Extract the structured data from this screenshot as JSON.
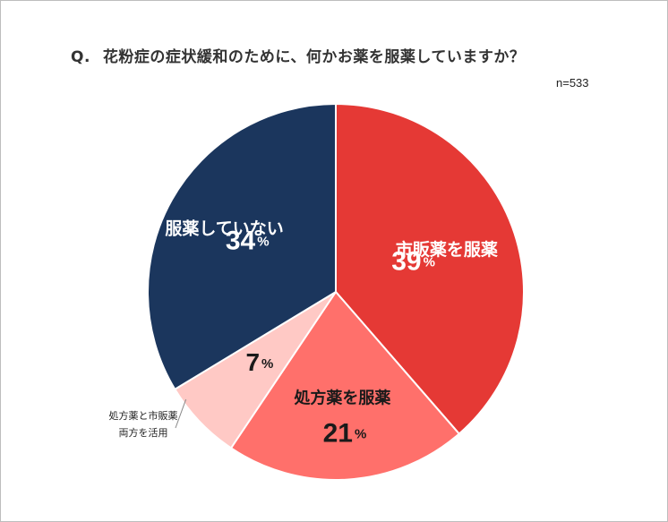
{
  "header": {
    "q_prefix": "Q.",
    "question": "花粉症の症状緩和のために、何かお薬を服薬していますか？",
    "sample_size": "n=533"
  },
  "chart_data": {
    "type": "pie",
    "title": "花粉症の症状緩和のために、何かお薬を服薬していますか？",
    "start_angle": "12 o'clock",
    "direction": "clockwise",
    "slices": [
      {
        "label": "市販薬を服薬",
        "value": 39,
        "display": "39",
        "unit": "%",
        "color": "#E53935",
        "label_color": "#ffffff",
        "label_position": "inside"
      },
      {
        "label": "処方薬を服薬",
        "value": 21,
        "display": "21",
        "unit": "%",
        "color": "#FF706B",
        "label_color": "#1a1a1a",
        "label_position": "inside"
      },
      {
        "label": "処方薬と市販薬両方を活用",
        "label_lines": [
          "処方薬と市販薬",
          "両方を活用"
        ],
        "value": 7,
        "display": "7",
        "unit": "%",
        "color": "#FFC9C5",
        "label_color": "#1a1a1a",
        "label_position": "outside"
      },
      {
        "label": "服薬していない",
        "value": 34,
        "display": "34",
        "unit": "%",
        "color": "#1B365D",
        "label_color": "#ffffff",
        "label_position": "inside"
      }
    ]
  }
}
